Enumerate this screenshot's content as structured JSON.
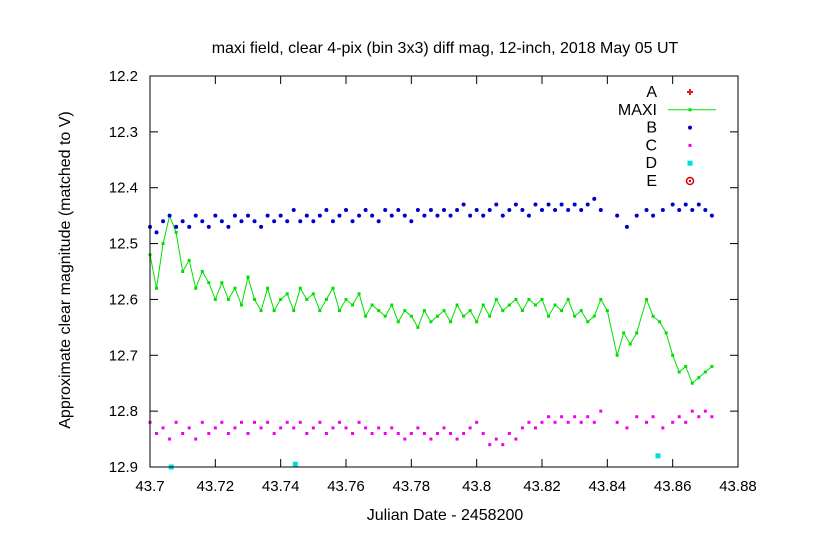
{
  "chart_data": {
    "type": "scatter",
    "title": "maxi field, clear 4-pix (bin 3x3) diff mag, 12-inch, 2018 May 05 UT",
    "xlabel": "Julian Date - 2458200",
    "ylabel": "Approximate clear magnitude (matched to V)",
    "xlim": [
      43.7,
      43.88
    ],
    "ylim": [
      12.2,
      12.9
    ],
    "y_inverted": true,
    "x_ticks": [
      "43.7",
      "43.72",
      "43.74",
      "43.76",
      "43.78",
      "43.8",
      "43.82",
      "43.84",
      "43.86",
      "43.88"
    ],
    "y_ticks": [
      "12.2",
      "12.3",
      "12.4",
      "12.5",
      "12.6",
      "12.7",
      "12.8",
      "12.9"
    ],
    "grid": false,
    "legend_position": "top-right",
    "series": [
      {
        "name": "A",
        "color": "#e41a1c",
        "marker": "plus",
        "points": []
      },
      {
        "name": "MAXI",
        "color": "#00e000",
        "marker": "small-square-line",
        "points": [
          [
            43.7,
            12.52
          ],
          [
            43.702,
            12.58
          ],
          [
            43.704,
            12.5
          ],
          [
            43.706,
            12.45
          ],
          [
            43.708,
            12.48
          ],
          [
            43.71,
            12.55
          ],
          [
            43.712,
            12.53
          ],
          [
            43.714,
            12.58
          ],
          [
            43.716,
            12.55
          ],
          [
            43.718,
            12.57
          ],
          [
            43.72,
            12.6
          ],
          [
            43.722,
            12.57
          ],
          [
            43.724,
            12.6
          ],
          [
            43.726,
            12.58
          ],
          [
            43.728,
            12.61
          ],
          [
            43.73,
            12.56
          ],
          [
            43.732,
            12.6
          ],
          [
            43.734,
            12.62
          ],
          [
            43.736,
            12.58
          ],
          [
            43.738,
            12.62
          ],
          [
            43.74,
            12.6
          ],
          [
            43.742,
            12.59
          ],
          [
            43.744,
            12.62
          ],
          [
            43.746,
            12.58
          ],
          [
            43.748,
            12.6
          ],
          [
            43.75,
            12.59
          ],
          [
            43.752,
            12.62
          ],
          [
            43.754,
            12.6
          ],
          [
            43.756,
            12.58
          ],
          [
            43.758,
            12.62
          ],
          [
            43.76,
            12.6
          ],
          [
            43.762,
            12.61
          ],
          [
            43.764,
            12.59
          ],
          [
            43.766,
            12.63
          ],
          [
            43.768,
            12.61
          ],
          [
            43.77,
            12.62
          ],
          [
            43.772,
            12.63
          ],
          [
            43.774,
            12.61
          ],
          [
            43.776,
            12.64
          ],
          [
            43.778,
            12.62
          ],
          [
            43.78,
            12.63
          ],
          [
            43.782,
            12.65
          ],
          [
            43.784,
            12.62
          ],
          [
            43.786,
            12.64
          ],
          [
            43.788,
            12.63
          ],
          [
            43.79,
            12.62
          ],
          [
            43.792,
            12.64
          ],
          [
            43.794,
            12.61
          ],
          [
            43.796,
            12.63
          ],
          [
            43.798,
            12.62
          ],
          [
            43.8,
            12.64
          ],
          [
            43.802,
            12.61
          ],
          [
            43.804,
            12.63
          ],
          [
            43.806,
            12.6
          ],
          [
            43.808,
            12.62
          ],
          [
            43.81,
            12.61
          ],
          [
            43.812,
            12.6
          ],
          [
            43.814,
            12.62
          ],
          [
            43.816,
            12.6
          ],
          [
            43.818,
            12.61
          ],
          [
            43.82,
            12.6
          ],
          [
            43.822,
            12.63
          ],
          [
            43.824,
            12.61
          ],
          [
            43.826,
            12.62
          ],
          [
            43.828,
            12.6
          ],
          [
            43.83,
            12.63
          ],
          [
            43.832,
            12.62
          ],
          [
            43.834,
            12.64
          ],
          [
            43.836,
            12.63
          ],
          [
            43.838,
            12.6
          ],
          [
            43.84,
            12.62
          ],
          [
            43.843,
            12.7
          ],
          [
            43.845,
            12.66
          ],
          [
            43.847,
            12.68
          ],
          [
            43.849,
            12.66
          ],
          [
            43.852,
            12.6
          ],
          [
            43.854,
            12.63
          ],
          [
            43.856,
            12.64
          ],
          [
            43.858,
            12.66
          ],
          [
            43.86,
            12.7
          ],
          [
            43.862,
            12.73
          ],
          [
            43.864,
            12.72
          ],
          [
            43.866,
            12.75
          ],
          [
            43.868,
            12.74
          ],
          [
            43.87,
            12.73
          ],
          [
            43.872,
            12.72
          ]
        ]
      },
      {
        "name": "B",
        "color": "#0000cc",
        "marker": "dot",
        "points": [
          [
            43.7,
            12.47
          ],
          [
            43.702,
            12.48
          ],
          [
            43.704,
            12.46
          ],
          [
            43.706,
            12.45
          ],
          [
            43.708,
            12.47
          ],
          [
            43.71,
            12.46
          ],
          [
            43.712,
            12.47
          ],
          [
            43.714,
            12.45
          ],
          [
            43.716,
            12.46
          ],
          [
            43.718,
            12.47
          ],
          [
            43.72,
            12.45
          ],
          [
            43.722,
            12.46
          ],
          [
            43.724,
            12.47
          ],
          [
            43.726,
            12.45
          ],
          [
            43.728,
            12.46
          ],
          [
            43.73,
            12.45
          ],
          [
            43.732,
            12.46
          ],
          [
            43.734,
            12.47
          ],
          [
            43.736,
            12.45
          ],
          [
            43.738,
            12.46
          ],
          [
            43.74,
            12.45
          ],
          [
            43.742,
            12.46
          ],
          [
            43.744,
            12.44
          ],
          [
            43.746,
            12.46
          ],
          [
            43.748,
            12.45
          ],
          [
            43.75,
            12.46
          ],
          [
            43.752,
            12.45
          ],
          [
            43.754,
            12.44
          ],
          [
            43.756,
            12.46
          ],
          [
            43.758,
            12.45
          ],
          [
            43.76,
            12.44
          ],
          [
            43.762,
            12.46
          ],
          [
            43.764,
            12.45
          ],
          [
            43.766,
            12.44
          ],
          [
            43.768,
            12.45
          ],
          [
            43.77,
            12.46
          ],
          [
            43.772,
            12.44
          ],
          [
            43.774,
            12.45
          ],
          [
            43.776,
            12.44
          ],
          [
            43.778,
            12.45
          ],
          [
            43.78,
            12.46
          ],
          [
            43.782,
            12.44
          ],
          [
            43.784,
            12.45
          ],
          [
            43.786,
            12.44
          ],
          [
            43.788,
            12.45
          ],
          [
            43.79,
            12.44
          ],
          [
            43.792,
            12.45
          ],
          [
            43.794,
            12.44
          ],
          [
            43.796,
            12.43
          ],
          [
            43.798,
            12.45
          ],
          [
            43.8,
            12.44
          ],
          [
            43.802,
            12.45
          ],
          [
            43.804,
            12.44
          ],
          [
            43.806,
            12.43
          ],
          [
            43.808,
            12.45
          ],
          [
            43.81,
            12.44
          ],
          [
            43.812,
            12.43
          ],
          [
            43.814,
            12.44
          ],
          [
            43.816,
            12.45
          ],
          [
            43.818,
            12.43
          ],
          [
            43.82,
            12.44
          ],
          [
            43.822,
            12.43
          ],
          [
            43.824,
            12.44
          ],
          [
            43.826,
            12.43
          ],
          [
            43.828,
            12.44
          ],
          [
            43.83,
            12.43
          ],
          [
            43.832,
            12.44
          ],
          [
            43.834,
            12.43
          ],
          [
            43.836,
            12.42
          ],
          [
            43.838,
            12.44
          ],
          [
            43.843,
            12.45
          ],
          [
            43.846,
            12.47
          ],
          [
            43.849,
            12.45
          ],
          [
            43.852,
            12.44
          ],
          [
            43.854,
            12.45
          ],
          [
            43.857,
            12.44
          ],
          [
            43.86,
            12.43
          ],
          [
            43.862,
            12.44
          ],
          [
            43.864,
            12.43
          ],
          [
            43.866,
            12.44
          ],
          [
            43.868,
            12.43
          ],
          [
            43.87,
            12.44
          ],
          [
            43.872,
            12.45
          ]
        ]
      },
      {
        "name": "C",
        "color": "#ee00ee",
        "marker": "small-square",
        "points": [
          [
            43.7,
            12.82
          ],
          [
            43.702,
            12.84
          ],
          [
            43.704,
            12.83
          ],
          [
            43.706,
            12.85
          ],
          [
            43.708,
            12.82
          ],
          [
            43.71,
            12.84
          ],
          [
            43.712,
            12.83
          ],
          [
            43.714,
            12.85
          ],
          [
            43.716,
            12.82
          ],
          [
            43.718,
            12.84
          ],
          [
            43.72,
            12.83
          ],
          [
            43.722,
            12.82
          ],
          [
            43.724,
            12.84
          ],
          [
            43.726,
            12.83
          ],
          [
            43.728,
            12.82
          ],
          [
            43.73,
            12.84
          ],
          [
            43.732,
            12.82
          ],
          [
            43.734,
            12.83
          ],
          [
            43.736,
            12.82
          ],
          [
            43.738,
            12.84
          ],
          [
            43.74,
            12.83
          ],
          [
            43.742,
            12.82
          ],
          [
            43.744,
            12.83
          ],
          [
            43.746,
            12.82
          ],
          [
            43.748,
            12.84
          ],
          [
            43.75,
            12.83
          ],
          [
            43.752,
            12.82
          ],
          [
            43.754,
            12.84
          ],
          [
            43.756,
            12.83
          ],
          [
            43.758,
            12.82
          ],
          [
            43.76,
            12.83
          ],
          [
            43.762,
            12.84
          ],
          [
            43.764,
            12.82
          ],
          [
            43.766,
            12.83
          ],
          [
            43.768,
            12.84
          ],
          [
            43.77,
            12.83
          ],
          [
            43.772,
            12.84
          ],
          [
            43.774,
            12.83
          ],
          [
            43.776,
            12.84
          ],
          [
            43.778,
            12.85
          ],
          [
            43.78,
            12.84
          ],
          [
            43.782,
            12.83
          ],
          [
            43.784,
            12.84
          ],
          [
            43.786,
            12.85
          ],
          [
            43.788,
            12.84
          ],
          [
            43.79,
            12.83
          ],
          [
            43.792,
            12.84
          ],
          [
            43.794,
            12.85
          ],
          [
            43.796,
            12.84
          ],
          [
            43.798,
            12.83
          ],
          [
            43.8,
            12.82
          ],
          [
            43.802,
            12.84
          ],
          [
            43.804,
            12.86
          ],
          [
            43.806,
            12.85
          ],
          [
            43.808,
            12.86
          ],
          [
            43.81,
            12.84
          ],
          [
            43.812,
            12.85
          ],
          [
            43.814,
            12.83
          ],
          [
            43.816,
            12.82
          ],
          [
            43.818,
            12.83
          ],
          [
            43.82,
            12.82
          ],
          [
            43.822,
            12.81
          ],
          [
            43.824,
            12.82
          ],
          [
            43.826,
            12.81
          ],
          [
            43.828,
            12.82
          ],
          [
            43.83,
            12.81
          ],
          [
            43.832,
            12.82
          ],
          [
            43.834,
            12.81
          ],
          [
            43.836,
            12.82
          ],
          [
            43.838,
            12.8
          ],
          [
            43.843,
            12.82
          ],
          [
            43.846,
            12.83
          ],
          [
            43.849,
            12.81
          ],
          [
            43.852,
            12.82
          ],
          [
            43.854,
            12.81
          ],
          [
            43.857,
            12.83
          ],
          [
            43.86,
            12.82
          ],
          [
            43.862,
            12.81
          ],
          [
            43.864,
            12.82
          ],
          [
            43.866,
            12.8
          ],
          [
            43.868,
            12.81
          ],
          [
            43.87,
            12.8
          ],
          [
            43.872,
            12.81
          ]
        ]
      },
      {
        "name": "D",
        "color": "#00dddd",
        "marker": "square",
        "points": [
          [
            43.7065,
            12.9
          ],
          [
            43.7445,
            12.895
          ],
          [
            43.8555,
            12.88
          ]
        ]
      },
      {
        "name": "E",
        "color": "#dd0000",
        "marker": "circle-dot",
        "points": []
      }
    ]
  }
}
